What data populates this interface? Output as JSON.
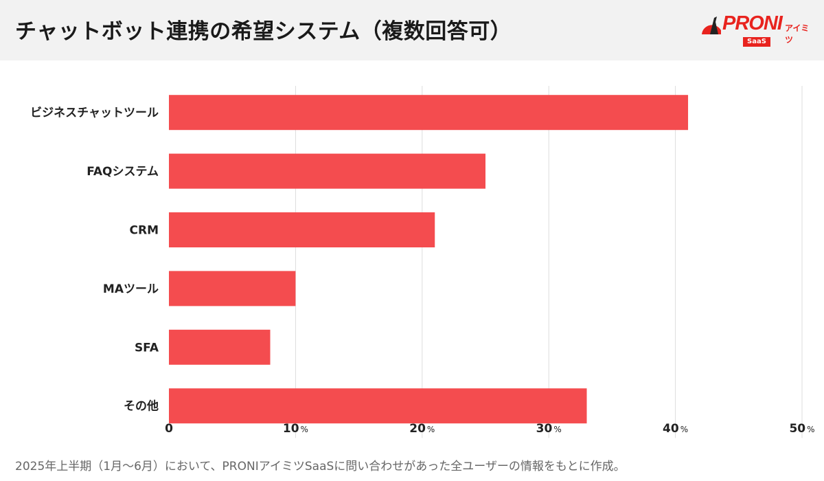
{
  "header": {
    "title": "チャットボット連携の希望システム（複数回答可）"
  },
  "logo": {
    "text": "PRONI",
    "sub": "アイミツ",
    "badge": "SaaS",
    "color": "#e8231e"
  },
  "chart_data": {
    "type": "bar",
    "orientation": "horizontal",
    "categories": [
      "ビジネスチャットツール",
      "FAQシステム",
      "CRM",
      "MAツール",
      "SFA",
      "その他"
    ],
    "values": [
      41,
      25,
      21,
      10,
      8,
      33
    ],
    "xlim": [
      0,
      50
    ],
    "xticks": [
      0,
      10,
      20,
      30,
      40,
      50
    ],
    "xtick_labels": [
      "0",
      "10",
      "20",
      "30",
      "40",
      "50"
    ],
    "unit": "%",
    "grid": "vertical",
    "bar_color": "#f44c4f"
  },
  "footnote": "2025年上半期（1月〜6月）において、PRONIアイミツSaaSに問い合わせがあった全ユーザーの情報をもとに作成。"
}
